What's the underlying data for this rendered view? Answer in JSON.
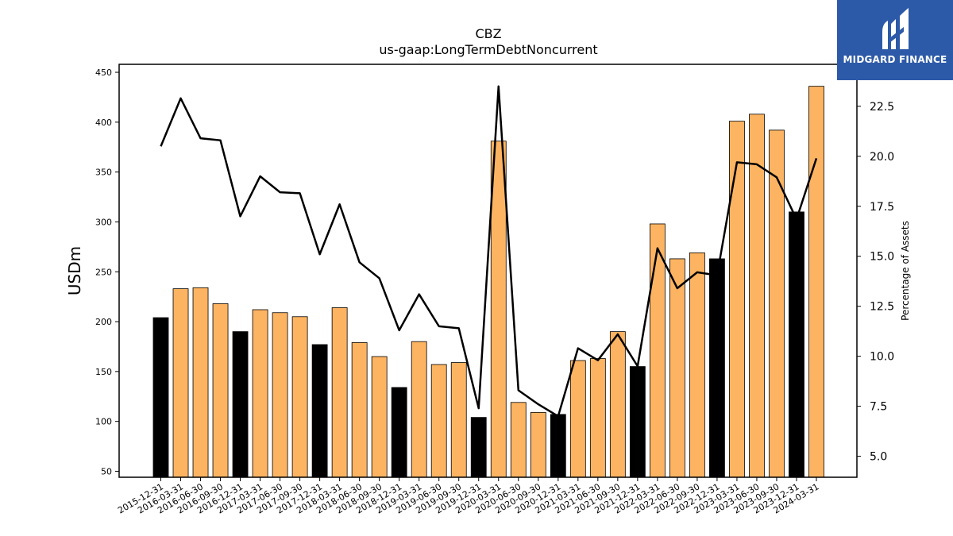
{
  "brand": {
    "name": "MIDGARD FINANCE",
    "color": "#2d5aa8"
  },
  "chart_data": {
    "type": "bar",
    "title": "CBZ",
    "subtitle": "us-gaap:LongTermDebtNoncurrent",
    "ylabel": "USDm",
    "y2label": "Percentage of Assets",
    "ylim": [
      44,
      458
    ],
    "y2lim": [
      3.95,
      24.6
    ],
    "yticks": [
      50,
      100,
      150,
      200,
      250,
      300,
      350,
      400,
      450
    ],
    "y2ticks": [
      "5.0",
      "7.5",
      "10.0",
      "12.5",
      "15.0",
      "17.5",
      "20.0",
      "22.5"
    ],
    "categories": [
      "2015-12-31",
      "2016-03-31",
      "2016-06-30",
      "2016-09-30",
      "2016-12-31",
      "2017-03-31",
      "2017-06-30",
      "2017-09-30",
      "2017-12-31",
      "2018-03-31",
      "2018-06-30",
      "2018-09-30",
      "2018-12-31",
      "2019-03-31",
      "2019-06-30",
      "2019-09-30",
      "2019-12-31",
      "2020-03-31",
      "2020-06-30",
      "2020-09-30",
      "2020-12-31",
      "2021-03-31",
      "2021-06-30",
      "2021-09-30",
      "2021-12-31",
      "2022-03-31",
      "2022-06-30",
      "2022-09-30",
      "2022-12-31",
      "2023-03-31",
      "2023-06-30",
      "2023-09-30",
      "2023-12-31",
      "2024-03-31"
    ],
    "series": [
      {
        "kind": "bar",
        "values": [
          204,
          233,
          234,
          218,
          190,
          212,
          209,
          205,
          177,
          214,
          179,
          165,
          134,
          180,
          157,
          159,
          104,
          381,
          119,
          109,
          107,
          161,
          163,
          190,
          155,
          298,
          263,
          269,
          263,
          401,
          408,
          392,
          310,
          436
        ],
        "year_end": [
          true,
          false,
          false,
          false,
          true,
          false,
          false,
          false,
          true,
          false,
          false,
          false,
          true,
          false,
          false,
          false,
          true,
          false,
          false,
          false,
          true,
          false,
          false,
          false,
          true,
          false,
          false,
          false,
          true,
          false,
          false,
          false,
          true,
          false
        ]
      },
      {
        "kind": "line",
        "axis": "right",
        "values": [
          20.5,
          22.9,
          20.9,
          20.8,
          17.0,
          19.0,
          18.2,
          18.15,
          15.1,
          17.6,
          14.7,
          13.9,
          11.3,
          13.1,
          11.5,
          11.4,
          7.4,
          23.5,
          8.3,
          7.6,
          7.0,
          10.4,
          9.8,
          11.1,
          9.5,
          15.4,
          13.4,
          14.2,
          14.05,
          19.7,
          19.6,
          18.95,
          16.85,
          19.9
        ]
      }
    ],
    "colors": {
      "bar": "#fdb462",
      "bar_year_end": "#000000",
      "line": "#000000"
    },
    "grid": false
  }
}
